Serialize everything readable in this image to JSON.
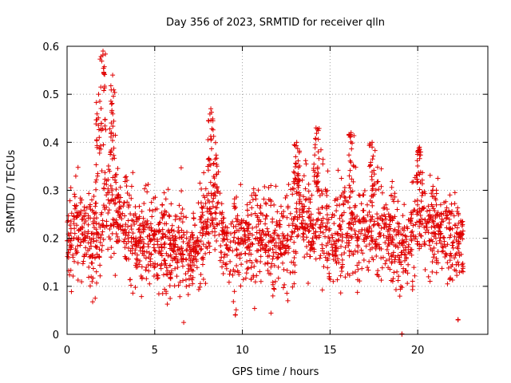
{
  "chart_data": {
    "type": "scatter",
    "title": "Day 356 of 2023, SRMTID for receiver qlln",
    "xlabel": "GPS time / hours",
    "ylabel": "SRMTID / TECUs",
    "xlim": [
      0,
      24
    ],
    "ylim": [
      0,
      0.6
    ],
    "xticks": [
      0,
      5,
      10,
      15,
      20
    ],
    "xtick_labels": [
      "0",
      "5",
      "10",
      "15",
      "20"
    ],
    "yticks": [
      0,
      0.1,
      0.2,
      0.3,
      0.4,
      0.5,
      0.6
    ],
    "ytick_labels": [
      "0",
      "0.1",
      "0.2",
      "0.3",
      "0.4",
      "0.5",
      "0.6"
    ],
    "grid": true,
    "marker": "plus",
    "color": "#e00000",
    "x_range_of_data": [
      0,
      22.6
    ],
    "baseline_mean_profile": {
      "x": [
        0,
        1,
        2,
        2.1,
        3,
        4,
        5,
        6,
        7,
        8,
        8.4,
        9,
        10,
        11,
        12,
        13,
        13.2,
        14,
        14.3,
        15,
        16,
        17,
        18,
        19,
        19.5,
        20,
        21,
        22,
        22.6
      ],
      "y": [
        0.2,
        0.21,
        0.19,
        0.3,
        0.25,
        0.19,
        0.2,
        0.18,
        0.17,
        0.23,
        0.3,
        0.19,
        0.18,
        0.2,
        0.19,
        0.21,
        0.28,
        0.2,
        0.26,
        0.2,
        0.21,
        0.22,
        0.22,
        0.19,
        0.17,
        0.25,
        0.22,
        0.2,
        0.19
      ]
    },
    "peaks": [
      {
        "x": 2.05,
        "y": 0.59
      },
      {
        "x": 1.8,
        "y": 0.5
      },
      {
        "x": 2.6,
        "y": 0.54
      },
      {
        "x": 8.2,
        "y": 0.47
      },
      {
        "x": 13.1,
        "y": 0.4
      },
      {
        "x": 14.2,
        "y": 0.43
      },
      {
        "x": 16.2,
        "y": 0.42
      },
      {
        "x": 17.4,
        "y": 0.4
      },
      {
        "x": 20.1,
        "y": 0.39
      }
    ],
    "outliers": [
      {
        "x": 19.1,
        "y": 0.0
      },
      {
        "x": 9.6,
        "y": 0.04
      },
      {
        "x": 22.3,
        "y": 0.03
      }
    ],
    "point_spread": 0.06,
    "point_count": 2200
  }
}
